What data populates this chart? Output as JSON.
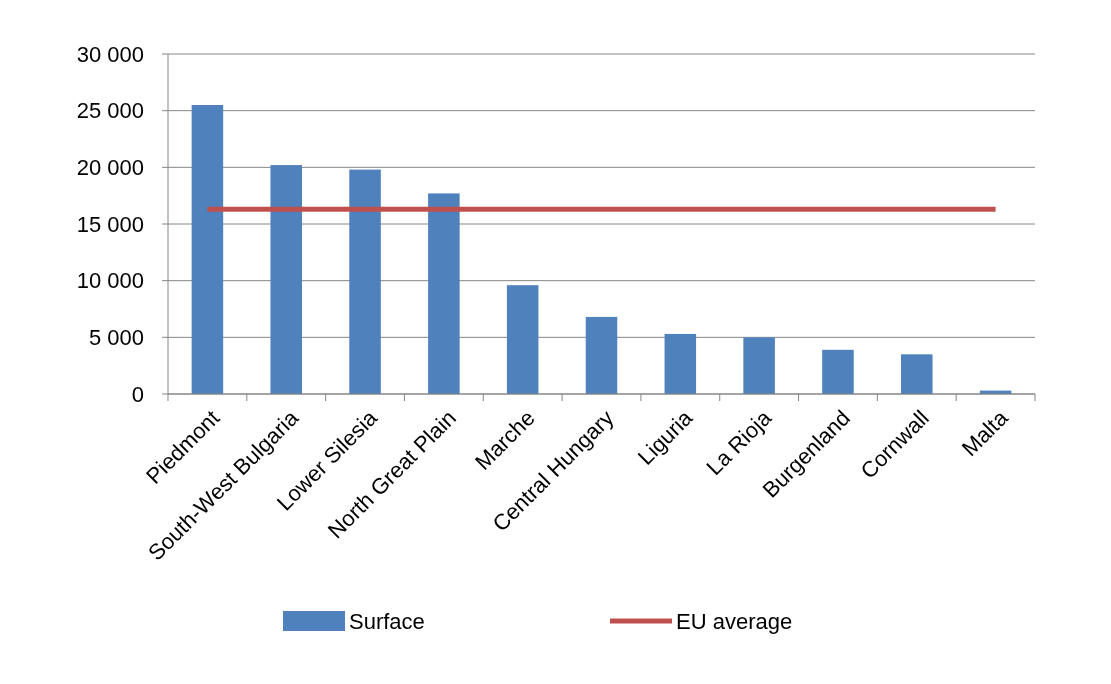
{
  "chart_data": {
    "type": "bar",
    "categories": [
      "Piedmont",
      "South-West Bulgaria",
      "Lower Silesia",
      "North Great Plain",
      "Marche",
      "Central Hungary",
      "Liguria",
      "La Rioja",
      "Burgenland",
      "Cornwall",
      "Malta"
    ],
    "series": [
      {
        "name": "Surface",
        "color": "#4f81bd",
        "values": [
          25500,
          20200,
          19800,
          17700,
          9600,
          6800,
          5300,
          5000,
          3900,
          3500,
          300
        ]
      },
      {
        "name": "EU average",
        "type": "line",
        "color": "#c0504d",
        "values": [
          16300,
          16300,
          16300,
          16300,
          16300,
          16300,
          16300,
          16300,
          16300,
          16300,
          16300
        ]
      }
    ],
    "ylim": [
      0,
      30000
    ],
    "yticks": [
      0,
      {
        "value": 5000,
        "label": "5 000"
      },
      {
        "value": 10000,
        "label": "10 000"
      },
      {
        "value": 15000,
        "label": "15 000"
      },
      {
        "value": 20000,
        "label": "20 000"
      },
      {
        "value": 25000,
        "label": "25 000"
      },
      {
        "value": 30000,
        "label": "30 000"
      }
    ],
    "grid": "y",
    "legend": "bottom",
    "marker": "none"
  }
}
